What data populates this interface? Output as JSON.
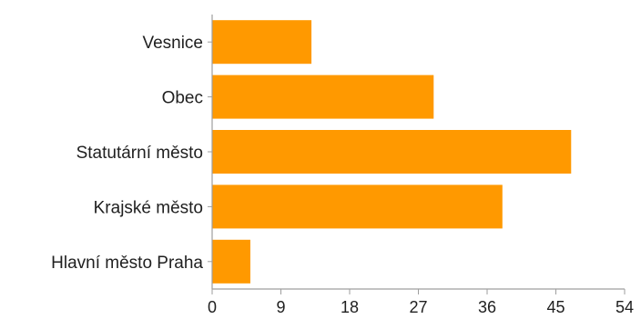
{
  "chart_data": {
    "type": "bar",
    "orientation": "horizontal",
    "categories": [
      "Vesnice",
      "Obec",
      "Statutární město",
      "Krajské město",
      "Hlavní město Praha"
    ],
    "values": [
      13,
      29,
      47,
      38,
      5
    ],
    "xticks": [
      0,
      9,
      18,
      27,
      36,
      45,
      54
    ],
    "xlim": [
      0,
      54
    ],
    "bar_color": "#FF9900",
    "axis_color": "#9e9e9e",
    "grid": false,
    "title": "",
    "xlabel": "",
    "ylabel": ""
  }
}
